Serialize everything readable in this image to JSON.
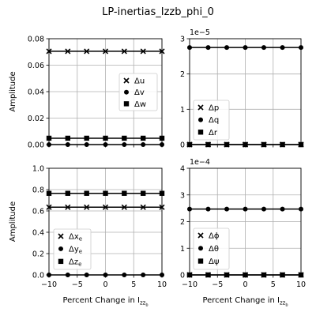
{
  "figure_title": "LP-inertias_Izzb_phi_0",
  "chart_data": [
    {
      "type": "line",
      "ylabel": "Amplitude",
      "xlim": [
        -10,
        10
      ],
      "ylim": [
        0,
        0.08
      ],
      "yticks": [
        "0.00",
        "0.02",
        "0.04",
        "0.06",
        "0.08"
      ],
      "x": [
        -10,
        -6.67,
        -3.33,
        0,
        3.33,
        6.67,
        10
      ],
      "grid": true,
      "legend_position": "center-right",
      "series": [
        {
          "name": "Δu",
          "marker": "x",
          "values": [
            0.0705,
            0.0705,
            0.0705,
            0.0705,
            0.0705,
            0.0705,
            0.0705
          ]
        },
        {
          "name": "Δv",
          "marker": "circle",
          "values": [
            0,
            0,
            0,
            0,
            0,
            0,
            0
          ]
        },
        {
          "name": "Δw",
          "marker": "square",
          "values": [
            0.0048,
            0.0048,
            0.0048,
            0.0048,
            0.0048,
            0.0048,
            0.0048
          ]
        }
      ]
    },
    {
      "type": "line",
      "ylabel": "",
      "xlim": [
        -10,
        10
      ],
      "ylim": [
        0,
        3
      ],
      "yticks": [
        "0",
        "1",
        "2",
        "3"
      ],
      "scale_label": "1e−5",
      "x": [
        -10,
        -6.67,
        -3.33,
        0,
        3.33,
        6.67,
        10
      ],
      "grid": true,
      "legend_position": "lower-left",
      "series": [
        {
          "name": "Δp",
          "marker": "x",
          "values": [
            0,
            0,
            0,
            0,
            0,
            0,
            0
          ]
        },
        {
          "name": "Δq",
          "marker": "circle",
          "values": [
            2.75,
            2.75,
            2.75,
            2.75,
            2.75,
            2.75,
            2.75
          ]
        },
        {
          "name": "Δr",
          "marker": "square",
          "values": [
            0,
            0,
            0,
            0,
            0,
            0,
            0
          ]
        }
      ]
    },
    {
      "type": "line",
      "ylabel": "Amplitude",
      "xlabel": "Percent Change in I",
      "xlabel_sub": "zz",
      "xlabel_subsub": "b",
      "xlim": [
        -10,
        10
      ],
      "ylim": [
        0,
        1.0
      ],
      "yticks": [
        "0.0",
        "0.2",
        "0.4",
        "0.6",
        "0.8",
        "1.0"
      ],
      "xticks": [
        "−10",
        "−5",
        "0",
        "5",
        "10"
      ],
      "x": [
        -10,
        -6.67,
        -3.33,
        0,
        3.33,
        6.67,
        10
      ],
      "grid": true,
      "legend_position": "lower-left",
      "series": [
        {
          "name": "Δx",
          "sub": "e",
          "marker": "x",
          "values": [
            0.635,
            0.635,
            0.635,
            0.635,
            0.635,
            0.635,
            0.635
          ]
        },
        {
          "name": "Δy",
          "sub": "e",
          "marker": "circle",
          "values": [
            0,
            0,
            0,
            0,
            0,
            0,
            0
          ]
        },
        {
          "name": "Δz",
          "sub": "e",
          "marker": "square",
          "values": [
            0.765,
            0.765,
            0.765,
            0.765,
            0.765,
            0.765,
            0.765
          ]
        }
      ]
    },
    {
      "type": "line",
      "ylabel": "",
      "xlabel": "Percent Change in I",
      "xlabel_sub": "zz",
      "xlabel_subsub": "b",
      "xlim": [
        -10,
        10
      ],
      "ylim": [
        0,
        4
      ],
      "yticks": [
        "0",
        "1",
        "2",
        "3",
        "4"
      ],
      "xticks": [
        "−10",
        "−5",
        "0",
        "5",
        "10"
      ],
      "scale_label": "1e−4",
      "x": [
        -10,
        -6.67,
        -3.33,
        0,
        3.33,
        6.67,
        10
      ],
      "grid": true,
      "legend_position": "lower-left",
      "series": [
        {
          "name": "Δϕ",
          "marker": "x",
          "values": [
            0,
            0,
            0,
            0,
            0,
            0,
            0
          ]
        },
        {
          "name": "Δθ",
          "marker": "circle",
          "values": [
            2.47,
            2.47,
            2.47,
            2.47,
            2.47,
            2.47,
            2.47
          ]
        },
        {
          "name": "Δψ",
          "marker": "square",
          "values": [
            0,
            0,
            0,
            0,
            0,
            0,
            0
          ]
        }
      ]
    }
  ]
}
